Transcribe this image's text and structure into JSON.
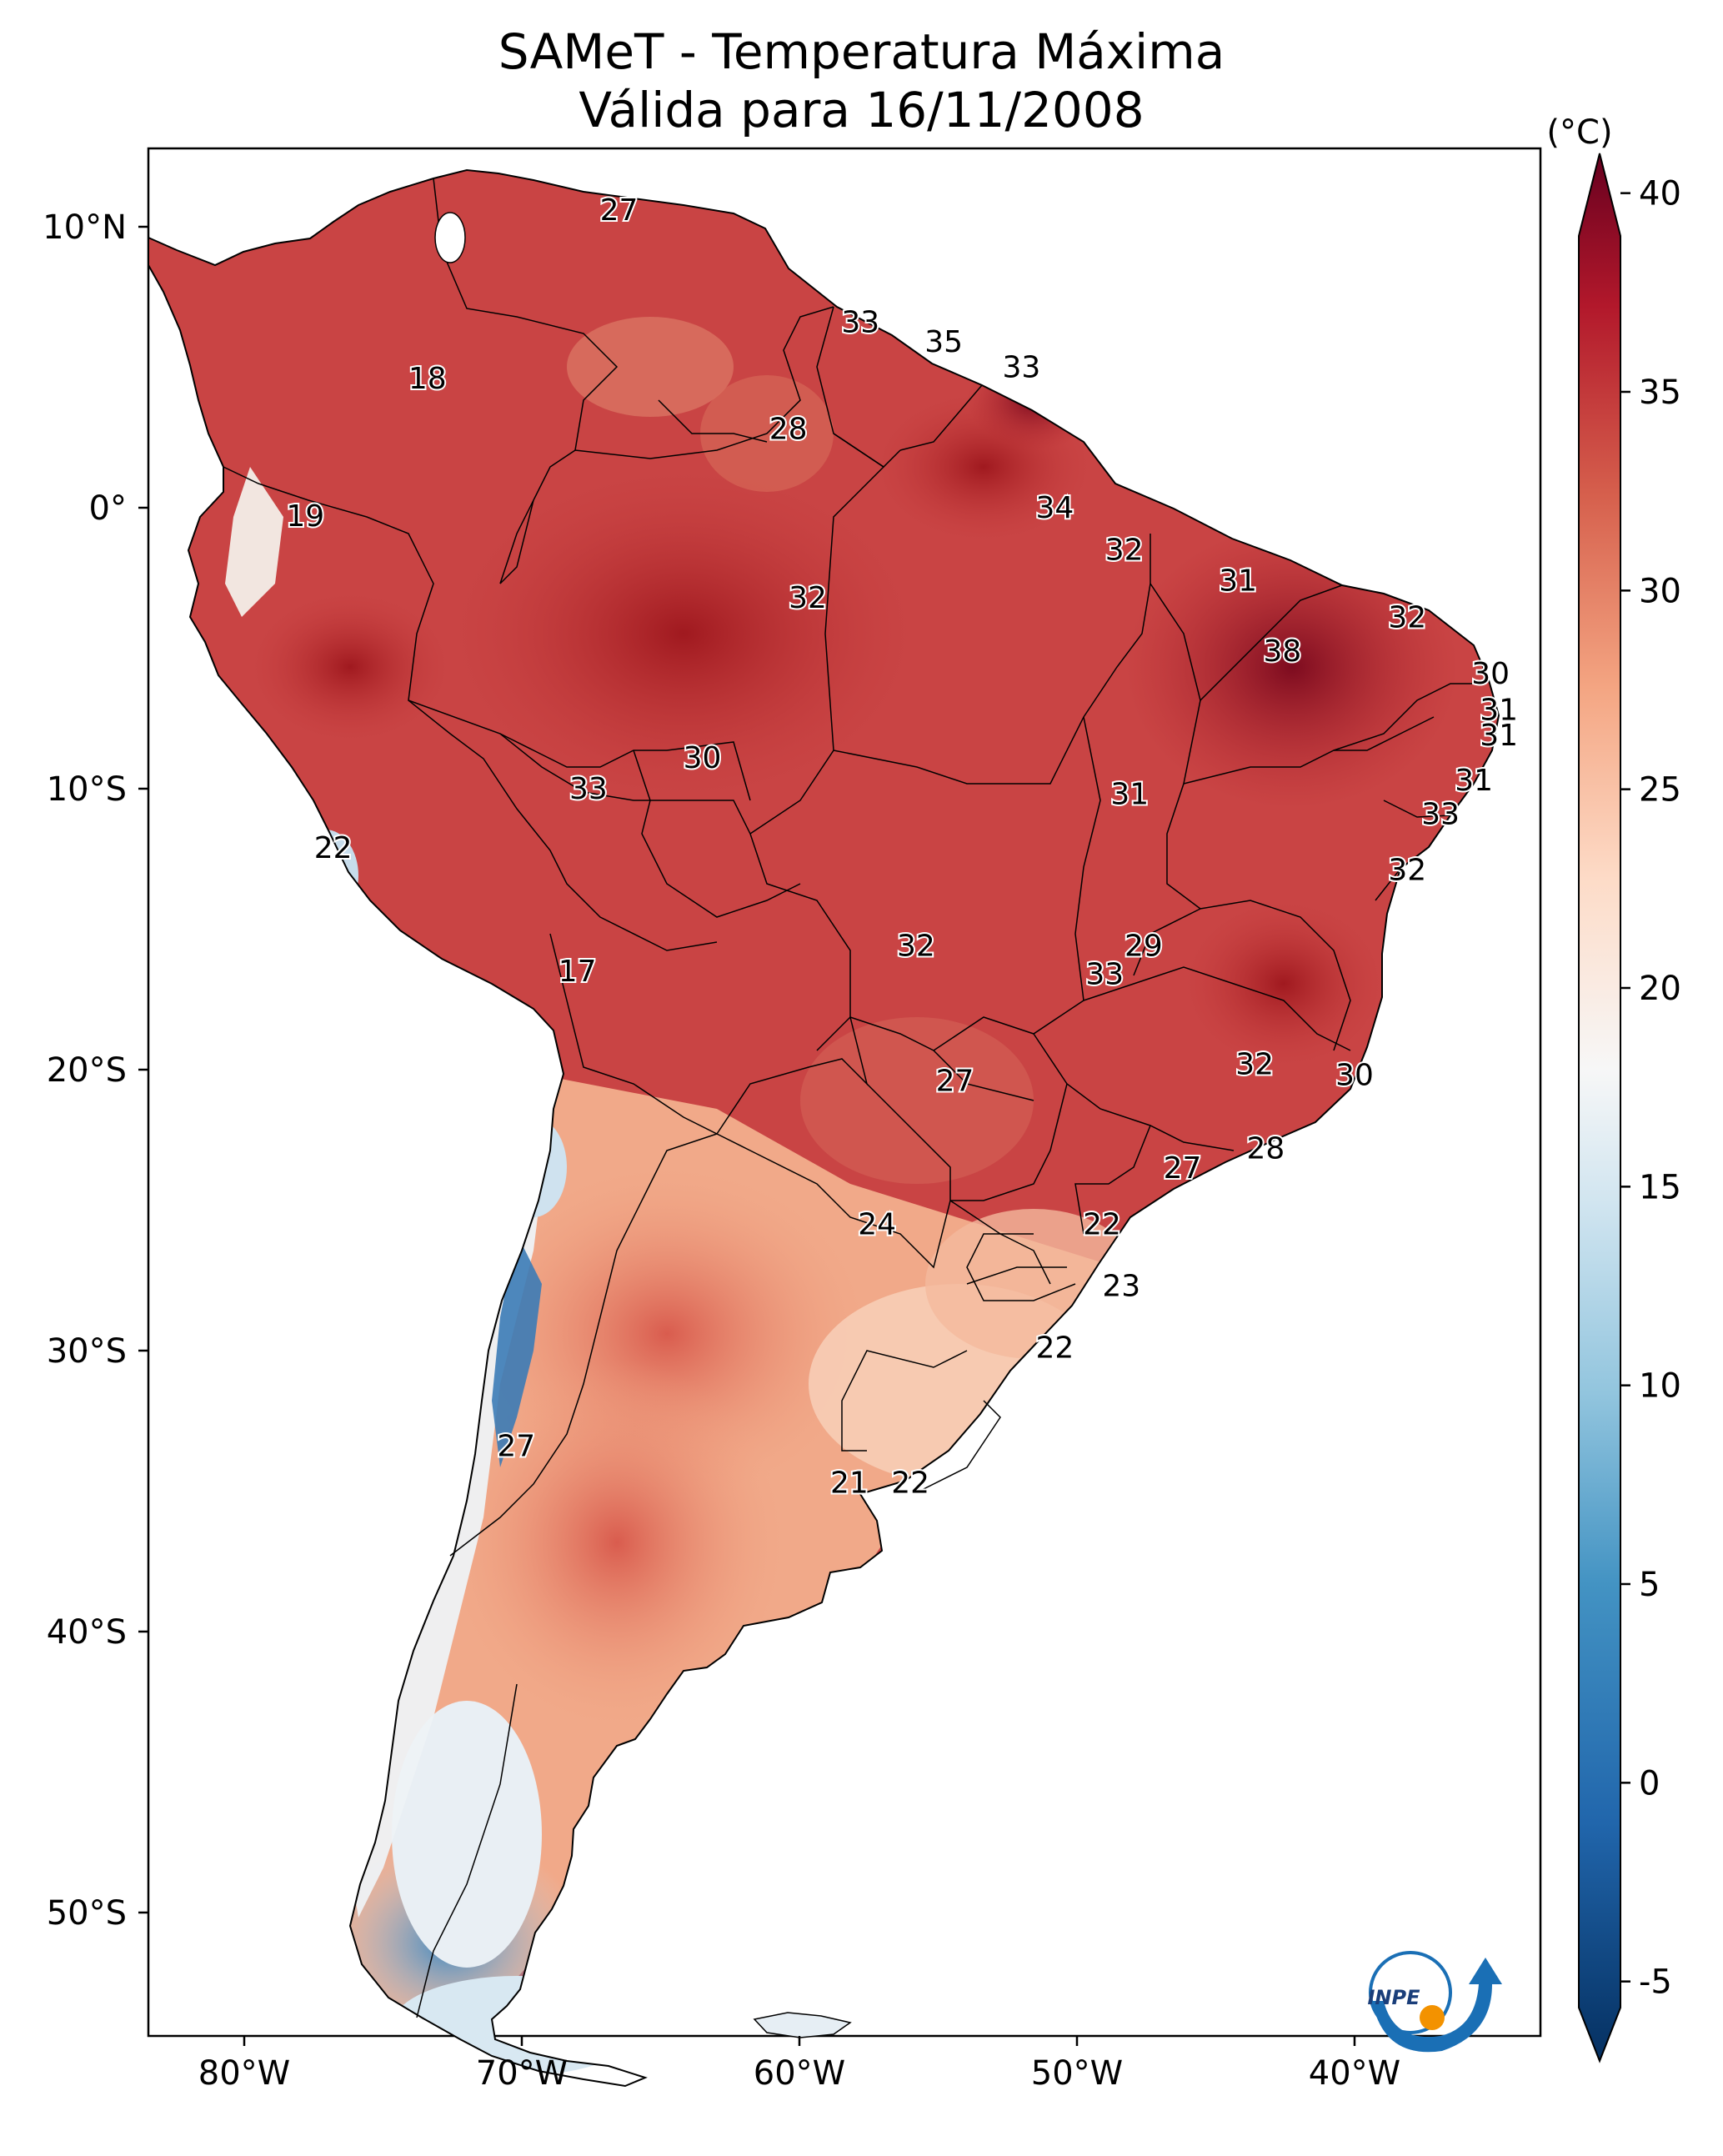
{
  "title": {
    "line1": "SAMeT - Temperatura Máxima",
    "line2": "Válida para 16/11/2008"
  },
  "axes": {
    "lon_ticks": [
      "80°W",
      "70°W",
      "60°W",
      "50°W",
      "40°W"
    ],
    "lat_ticks": [
      "10°N",
      "0°",
      "10°S",
      "20°S",
      "30°S",
      "40°S",
      "50°S"
    ]
  },
  "colorbar": {
    "unit": "(°C)",
    "ticks": [
      "40",
      "35",
      "30",
      "25",
      "20",
      "15",
      "10",
      "5",
      "0",
      "-5"
    ],
    "range": [
      -7,
      41
    ],
    "colors": {
      "max": "#67001f",
      "high": "#c43c3c",
      "warm": "#f4a582",
      "neutral": "#f7f7f7",
      "cool": "#92c5de",
      "min": "#053061"
    }
  },
  "contour_labels": [
    {
      "text": "27",
      "lon": -66.5,
      "lat": 10.6
    },
    {
      "text": "33",
      "lon": -57.8,
      "lat": 6.6
    },
    {
      "text": "35",
      "lon": -54.8,
      "lat": 5.9
    },
    {
      "text": "33",
      "lon": -52.0,
      "lat": 5.0
    },
    {
      "text": "18",
      "lon": -73.4,
      "lat": 4.6
    },
    {
      "text": "28",
      "lon": -60.4,
      "lat": 2.8
    },
    {
      "text": "34",
      "lon": -50.8,
      "lat": 0.0
    },
    {
      "text": "19",
      "lon": -77.8,
      "lat": -0.3
    },
    {
      "text": "32",
      "lon": -48.3,
      "lat": -1.5
    },
    {
      "text": "31",
      "lon": -44.2,
      "lat": -2.6
    },
    {
      "text": "32",
      "lon": -59.7,
      "lat": -3.2
    },
    {
      "text": "32",
      "lon": -38.1,
      "lat": -3.9
    },
    {
      "text": "38",
      "lon": -42.6,
      "lat": -5.1
    },
    {
      "text": "30",
      "lon": -35.1,
      "lat": -5.9
    },
    {
      "text": "31",
      "lon": -34.8,
      "lat": -7.2
    },
    {
      "text": "31",
      "lon": -34.8,
      "lat": -8.1
    },
    {
      "text": "30",
      "lon": -63.5,
      "lat": -8.9
    },
    {
      "text": "31",
      "lon": -35.7,
      "lat": -9.7
    },
    {
      "text": "33",
      "lon": -67.6,
      "lat": -10.0
    },
    {
      "text": "31",
      "lon": -48.1,
      "lat": -10.2
    },
    {
      "text": "33",
      "lon": -36.9,
      "lat": -10.9
    },
    {
      "text": "22",
      "lon": -76.8,
      "lat": -12.1
    },
    {
      "text": "32",
      "lon": -38.1,
      "lat": -12.9
    },
    {
      "text": "32",
      "lon": -55.8,
      "lat": -15.6
    },
    {
      "text": "29",
      "lon": -47.6,
      "lat": -15.6
    },
    {
      "text": "33",
      "lon": -49.0,
      "lat": -16.6
    },
    {
      "text": "17",
      "lon": -68.0,
      "lat": -16.5
    },
    {
      "text": "32",
      "lon": -43.6,
      "lat": -19.8
    },
    {
      "text": "30",
      "lon": -40.0,
      "lat": -20.2
    },
    {
      "text": "27",
      "lon": -54.4,
      "lat": -20.4
    },
    {
      "text": "28",
      "lon": -43.2,
      "lat": -22.8
    },
    {
      "text": "27",
      "lon": -46.2,
      "lat": -23.5
    },
    {
      "text": "24",
      "lon": -57.2,
      "lat": -25.5
    },
    {
      "text": "22",
      "lon": -49.1,
      "lat": -25.5
    },
    {
      "text": "23",
      "lon": -48.4,
      "lat": -27.7
    },
    {
      "text": "22",
      "lon": -50.8,
      "lat": -29.9
    },
    {
      "text": "27",
      "lon": -70.2,
      "lat": -33.4
    },
    {
      "text": "21",
      "lon": -58.2,
      "lat": -34.7
    },
    {
      "text": "22",
      "lon": -56.0,
      "lat": -34.7
    }
  ],
  "logo": {
    "text": "INPE"
  }
}
